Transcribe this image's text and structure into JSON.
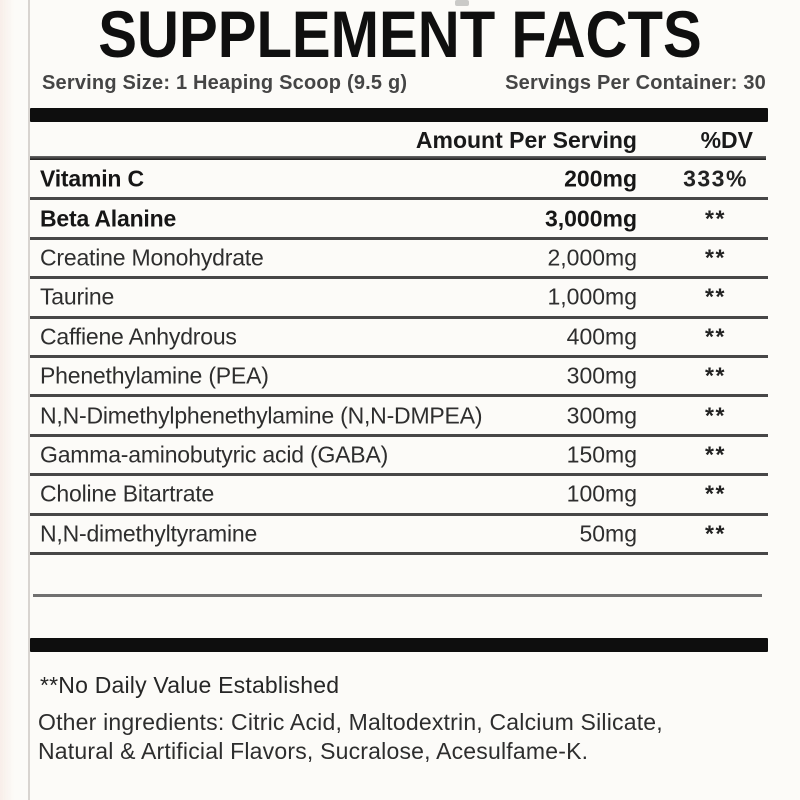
{
  "label": {
    "title": "SUPPLEMENT FACTS",
    "serving_info": {
      "serving_size": "Serving Size: 1 Heaping Scoop (9.5 g)",
      "servings_per_container": "Servings Per Container: 30"
    },
    "table": {
      "amount_header": "Amount Per Serving",
      "dv_header": "%DV",
      "rows": [
        {
          "name": "Vitamin C",
          "amount": "200mg",
          "dv": "333%",
          "bold": true
        },
        {
          "name": "Beta Alanine",
          "amount": "3,000mg",
          "dv": "**",
          "bold": true
        },
        {
          "name": "Creatine Monohydrate",
          "amount": "2,000mg",
          "dv": "**",
          "bold": false
        },
        {
          "name": "Taurine",
          "amount": "1,000mg",
          "dv": "**",
          "bold": false
        },
        {
          "name": "Caffiene Anhydrous",
          "amount": "400mg",
          "dv": "**",
          "bold": false
        },
        {
          "name": "Phenethylamine (PEA)",
          "amount": "300mg",
          "dv": "**",
          "bold": false
        },
        {
          "name": "N,N-Dimethylphenethylamine (N,N-DMPEA)",
          "amount": "300mg",
          "dv": "**",
          "bold": false
        },
        {
          "name": "Gamma-aminobutyric acid (GABA)",
          "amount": "150mg",
          "dv": "**",
          "bold": false
        },
        {
          "name": "Choline Bitartrate",
          "amount": "100mg",
          "dv": "**",
          "bold": false
        },
        {
          "name": "N,N-dimethyltyramine",
          "amount": "50mg",
          "dv": "**",
          "bold": false
        }
      ]
    },
    "footnote": "**No Daily Value Established",
    "other_ingredients_lines": [
      "Other ingredients: Citric Acid, Maltodextrin, Calcium Silicate,",
      "Natural & Artificial Flavors, Sucralose, Acesulfame-K."
    ],
    "colors": {
      "background": "#fcfbf8",
      "text": "#1d1d1d",
      "bar": "#0e0e0e",
      "divider": "#474747"
    }
  }
}
